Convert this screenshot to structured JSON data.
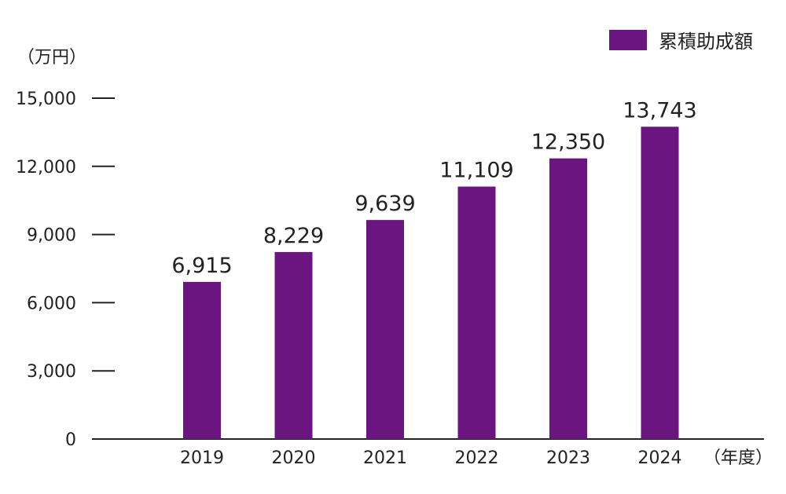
{
  "chart_data": {
    "type": "bar",
    "categories": [
      "2019",
      "2020",
      "2021",
      "2022",
      "2023",
      "2024"
    ],
    "series": [
      {
        "name": "累積助成額",
        "values": [
          6915,
          8229,
          9639,
          11109,
          12350,
          13743
        ]
      }
    ],
    "data_labels": [
      "6,915",
      "8,229",
      "9,639",
      "11,109",
      "12,350",
      "13,743"
    ],
    "y_unit": "（万円）",
    "x_unit": "（年度）",
    "ylim": [
      0,
      15000
    ],
    "y_ticks": [
      0,
      3000,
      6000,
      9000,
      12000,
      15000
    ],
    "y_tick_labels": [
      "0",
      "3,000",
      "6,000",
      "9,000",
      "12,000",
      "15,000"
    ],
    "grid": false,
    "legend_position": "top-right",
    "colors": {
      "bar": "#6a1580",
      "axis": "#222222"
    }
  }
}
